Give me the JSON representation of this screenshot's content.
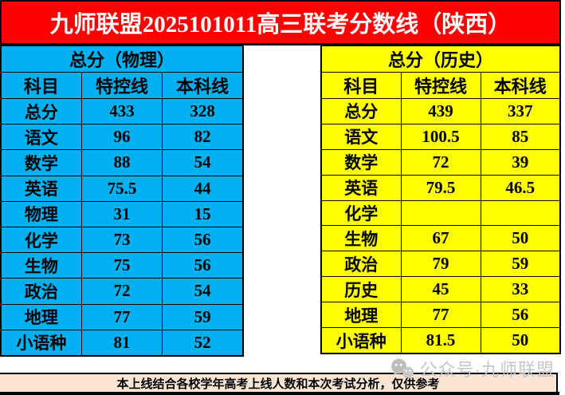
{
  "title": "九师联盟2025101011高三联考分数线（陕西）",
  "colors": {
    "title_bg": "#FF0000",
    "title_text": "#FFFFFF",
    "physics_bg": "#00B0F0",
    "history_bg": "#FFFF00",
    "footer_bg": "#FBE5D5",
    "border": "#000000",
    "watermark": "#C6C6C6"
  },
  "physics_table": {
    "header": "总分（物理）",
    "columns": [
      "科目",
      "特控线",
      "本科线"
    ],
    "rows": [
      [
        "总分",
        "433",
        "328"
      ],
      [
        "语文",
        "96",
        "82"
      ],
      [
        "数学",
        "88",
        "54"
      ],
      [
        "英语",
        "75.5",
        "44"
      ],
      [
        "物理",
        "31",
        "15"
      ],
      [
        "化学",
        "73",
        "56"
      ],
      [
        "生物",
        "75",
        "56"
      ],
      [
        "政治",
        "72",
        "54"
      ],
      [
        "地理",
        "77",
        "59"
      ],
      [
        "小语种",
        "81",
        "52"
      ]
    ]
  },
  "history_table": {
    "header": "总分（历史）",
    "columns": [
      "科目",
      "特控线",
      "本科线"
    ],
    "rows": [
      [
        "总分",
        "439",
        "337"
      ],
      [
        "语文",
        "100.5",
        "85"
      ],
      [
        "数学",
        "72",
        "39"
      ],
      [
        "英语",
        "79.5",
        "46.5"
      ],
      [
        "化学",
        "",
        ""
      ],
      [
        "生物",
        "67",
        "50"
      ],
      [
        "政治",
        "79",
        "59"
      ],
      [
        "历史",
        "45",
        "33"
      ],
      [
        "地理",
        "77",
        "56"
      ],
      [
        "小语种",
        "81.5",
        "50"
      ]
    ]
  },
  "watermark": {
    "icon": "wechat-official-account-icon",
    "text": "公众号·九师联盟"
  },
  "footer": {
    "note": "本上线结合各校学年高考上线人数和本次考试分析，仅供参考"
  }
}
